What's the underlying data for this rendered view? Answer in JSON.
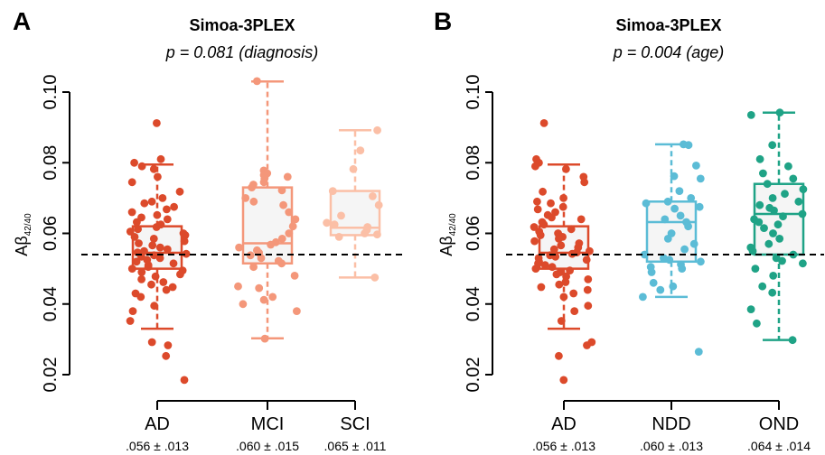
{
  "chart_data": [
    {
      "type": "boxplot",
      "panel_label": "A",
      "title": "Simoa-3PLEX",
      "subtitle": "p = 0.081 (diagnosis)",
      "ylabel": "Aβ",
      "ylabel_sub": "42/40",
      "ylim": [
        0.02,
        0.1
      ],
      "yticks": [
        "0.02",
        "0.04",
        "0.06",
        "0.08",
        "0.10"
      ],
      "reference_line": 0.054,
      "groups": [
        {
          "name": "AD",
          "stat": ".056 ± .013",
          "color": "#dc4a2b",
          "q1": 0.05,
          "median": 0.0545,
          "q3": 0.062,
          "whisker_low": 0.033,
          "whisker_high": 0.0795,
          "points": [
            0.0912,
            0.081,
            0.08,
            0.079,
            0.0782,
            0.076,
            0.0745,
            0.0718,
            0.07,
            0.069,
            0.0685,
            0.0675,
            0.0668,
            0.066,
            0.0652,
            0.0645,
            0.064,
            0.0632,
            0.0625,
            0.0618,
            0.0612,
            0.0605,
            0.06,
            0.0595,
            0.059,
            0.0585,
            0.0578,
            0.0572,
            0.0566,
            0.056,
            0.0555,
            0.055,
            0.0546,
            0.0542,
            0.0538,
            0.0534,
            0.053,
            0.0525,
            0.052,
            0.0515,
            0.051,
            0.0505,
            0.05,
            0.0495,
            0.049,
            0.0484,
            0.0478,
            0.047,
            0.0462,
            0.0455,
            0.0448,
            0.044,
            0.043,
            0.042,
            0.0395,
            0.038,
            0.0352,
            0.0292,
            0.0283,
            0.0253,
            0.0185
          ]
        },
        {
          "name": "MCI",
          "stat": ".060 ± .015",
          "color": "#f4977a",
          "q1": 0.0515,
          "median": 0.0572,
          "q3": 0.073,
          "whisker_low": 0.0303,
          "whisker_high": 0.103,
          "points": [
            0.1031,
            0.0778,
            0.077,
            0.0765,
            0.076,
            0.0755,
            0.0745,
            0.0738,
            0.073,
            0.0722,
            0.07,
            0.069,
            0.068,
            0.066,
            0.064,
            0.062,
            0.06,
            0.0585,
            0.0575,
            0.0568,
            0.056,
            0.0552,
            0.0545,
            0.0538,
            0.053,
            0.0522,
            0.0515,
            0.0505,
            0.048,
            0.045,
            0.0445,
            0.042,
            0.0412,
            0.04,
            0.038,
            0.0302
          ]
        },
        {
          "name": "SCI",
          "stat": ".065 ± .011",
          "color": "#fbbfa6",
          "q1": 0.0595,
          "median": 0.0616,
          "q3": 0.072,
          "whisker_low": 0.0475,
          "whisker_high": 0.0892,
          "points": [
            0.0892,
            0.0835,
            0.0782,
            0.072,
            0.0705,
            0.068,
            0.065,
            0.063,
            0.0625,
            0.0618,
            0.061,
            0.06,
            0.0597,
            0.059,
            0.0475
          ]
        }
      ]
    },
    {
      "type": "boxplot",
      "panel_label": "B",
      "title": "Simoa-3PLEX",
      "subtitle": "p = 0.004 (age)",
      "ylabel": "Aβ",
      "ylabel_sub": "42/40",
      "ylim": [
        0.02,
        0.1
      ],
      "yticks": [
        "0.02",
        "0.04",
        "0.06",
        "0.08",
        "0.10"
      ],
      "reference_line": 0.054,
      "groups": [
        {
          "name": "AD",
          "stat": ".056 ± .013",
          "color": "#dc4a2b",
          "q1": 0.05,
          "median": 0.0545,
          "q3": 0.062,
          "whisker_low": 0.033,
          "whisker_high": 0.0795,
          "points": [
            0.0912,
            0.081,
            0.08,
            0.079,
            0.0782,
            0.076,
            0.0745,
            0.0718,
            0.07,
            0.069,
            0.0685,
            0.0675,
            0.0668,
            0.066,
            0.0652,
            0.0645,
            0.064,
            0.0632,
            0.0625,
            0.0618,
            0.0612,
            0.0605,
            0.06,
            0.0595,
            0.059,
            0.0585,
            0.0578,
            0.0572,
            0.0566,
            0.056,
            0.0555,
            0.055,
            0.0546,
            0.0542,
            0.0538,
            0.0534,
            0.053,
            0.0525,
            0.052,
            0.0515,
            0.051,
            0.0505,
            0.05,
            0.0495,
            0.049,
            0.0484,
            0.0478,
            0.047,
            0.0462,
            0.0455,
            0.0448,
            0.044,
            0.043,
            0.042,
            0.0395,
            0.038,
            0.0352,
            0.0292,
            0.0283,
            0.0253,
            0.0185
          ]
        },
        {
          "name": "NDD",
          "stat": ".060 ± .013",
          "color": "#5bbcd6",
          "q1": 0.052,
          "median": 0.0632,
          "q3": 0.069,
          "whisker_low": 0.042,
          "whisker_high": 0.0852,
          "points": [
            0.0852,
            0.085,
            0.0792,
            0.0762,
            0.0755,
            0.072,
            0.07,
            0.069,
            0.0685,
            0.0675,
            0.067,
            0.065,
            0.064,
            0.0632,
            0.062,
            0.06,
            0.0585,
            0.057,
            0.0555,
            0.054,
            0.053,
            0.0525,
            0.052,
            0.0512,
            0.0505,
            0.05,
            0.049,
            0.046,
            0.045,
            0.044,
            0.042,
            0.0265
          ]
        },
        {
          "name": "OND",
          "stat": ".064 ± .014",
          "color": "#1fa386",
          "q1": 0.054,
          "median": 0.0655,
          "q3": 0.074,
          "whisker_low": 0.0298,
          "whisker_high": 0.0942,
          "points": [
            0.0942,
            0.0935,
            0.085,
            0.081,
            0.079,
            0.077,
            0.0755,
            0.074,
            0.0725,
            0.0712,
            0.07,
            0.069,
            0.068,
            0.0672,
            0.0665,
            0.0655,
            0.0648,
            0.064,
            0.0632,
            0.0625,
            0.0615,
            0.06,
            0.0585,
            0.057,
            0.056,
            0.055,
            0.054,
            0.053,
            0.0522,
            0.0515,
            0.05,
            0.048,
            0.045,
            0.0432,
            0.0385,
            0.0345,
            0.0298
          ]
        }
      ]
    }
  ]
}
